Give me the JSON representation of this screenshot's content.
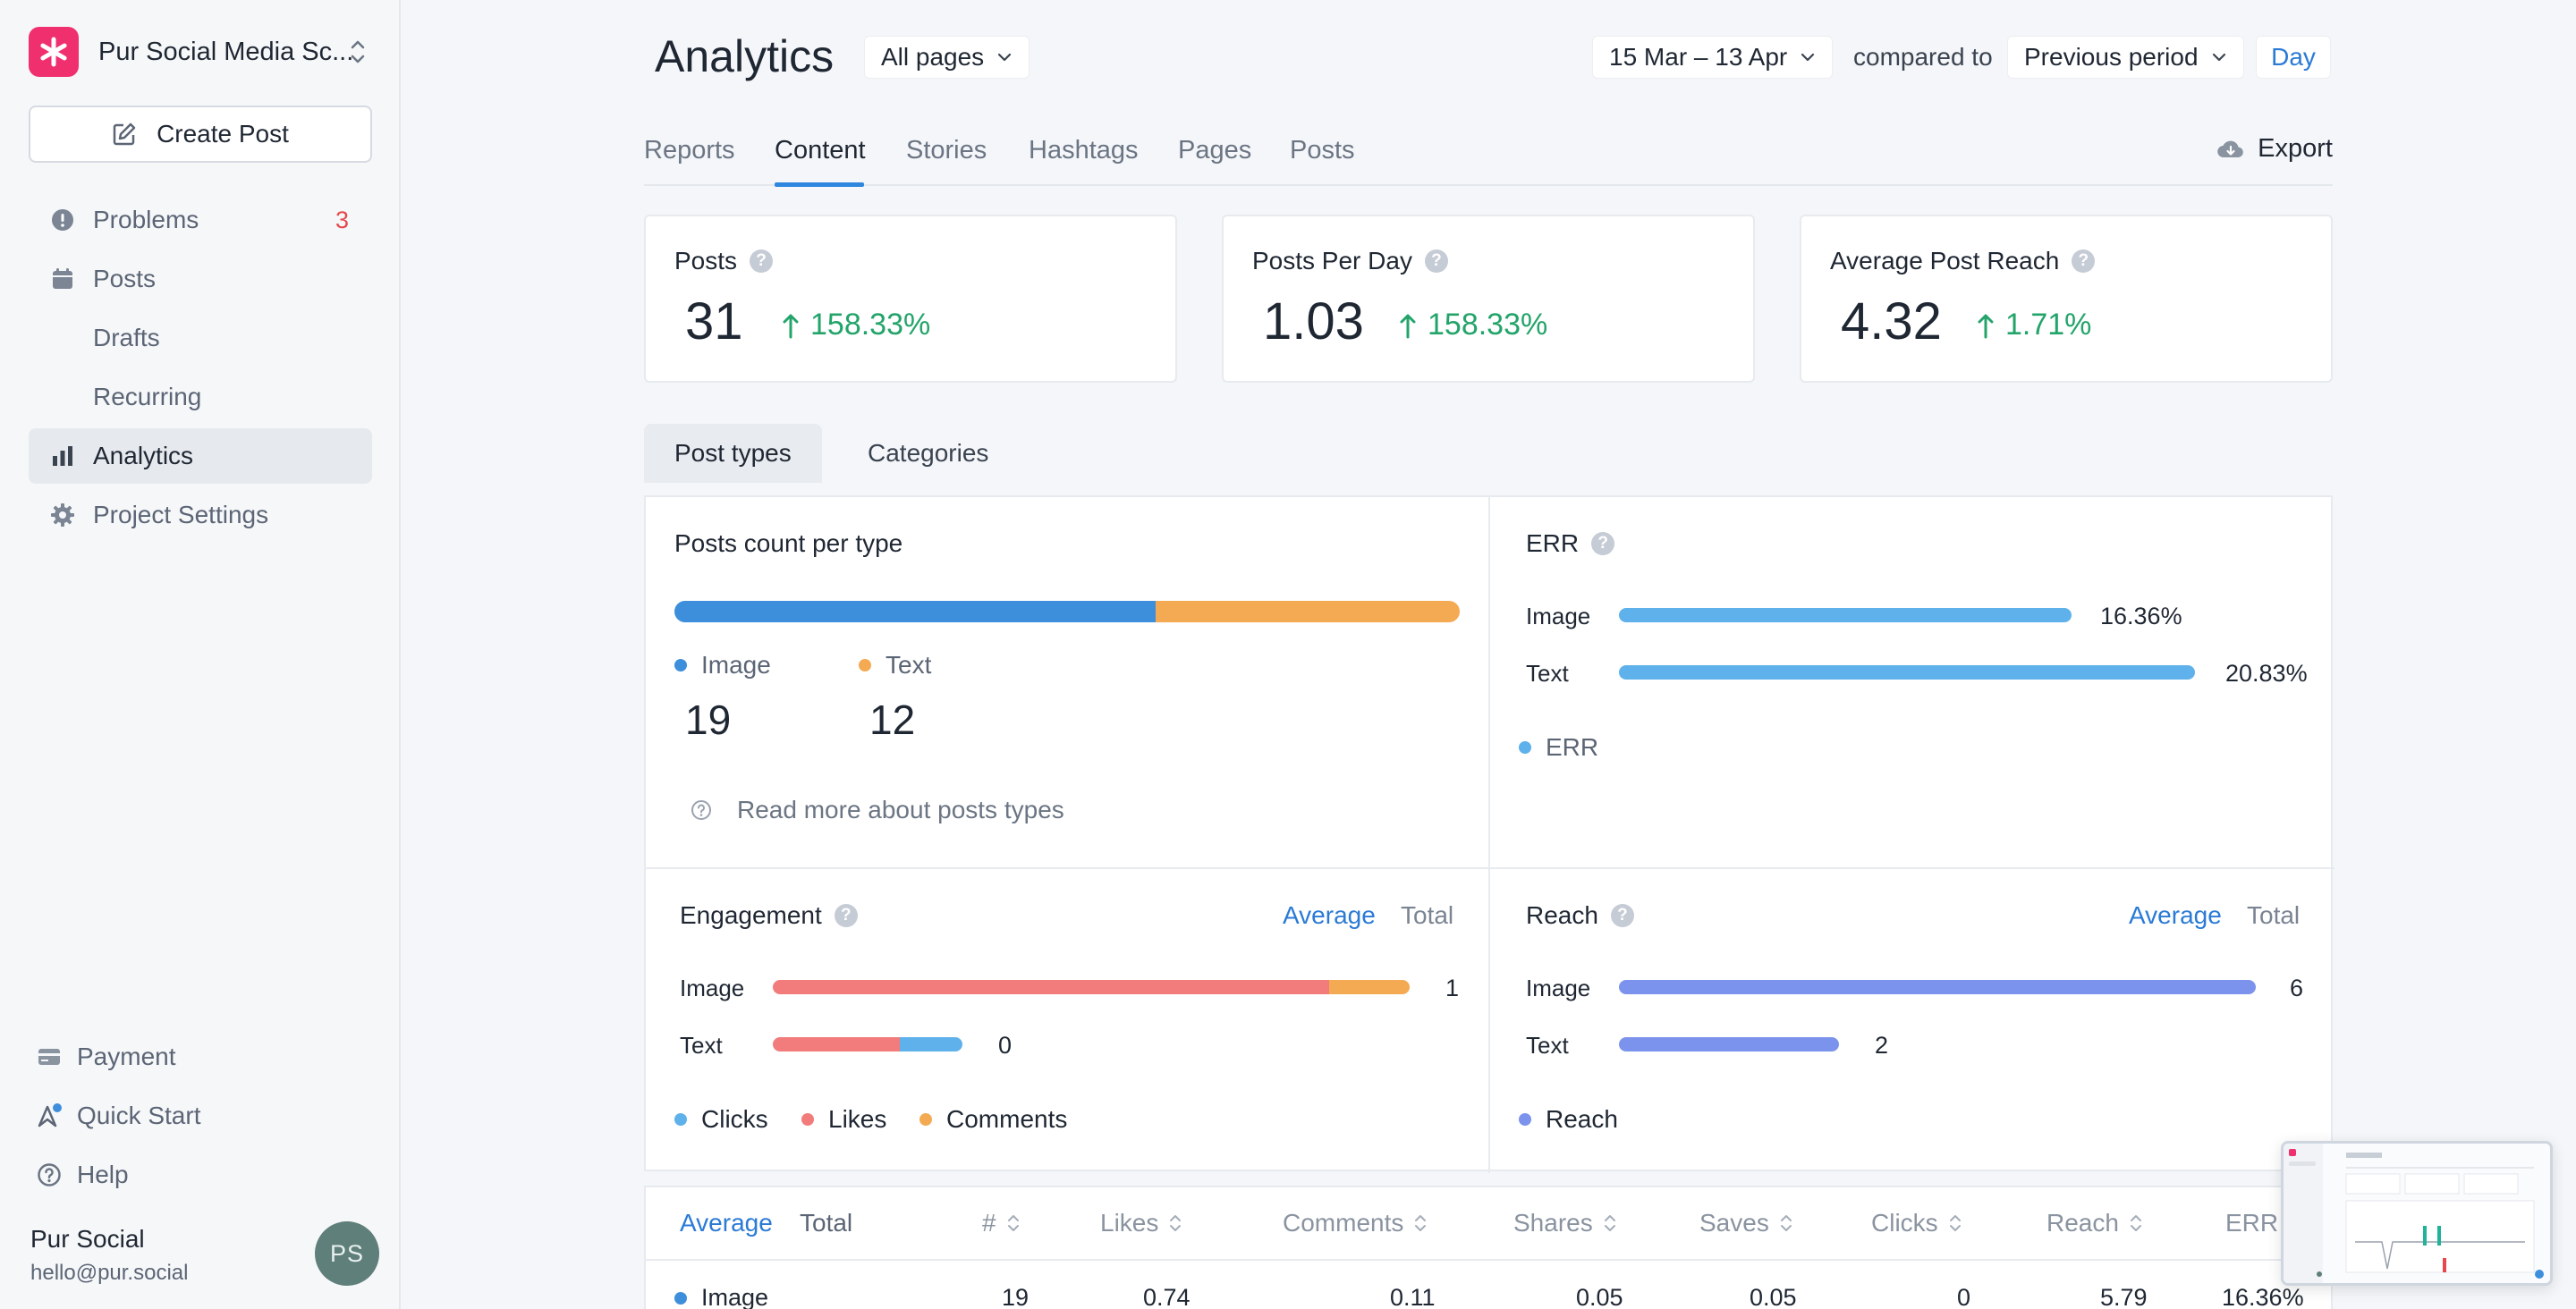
{
  "project": {
    "name": "Pur Social Media Sc..."
  },
  "sidebar": {
    "create_label": "Create Post",
    "items": [
      {
        "label": "Problems",
        "badge": "3"
      },
      {
        "label": "Posts"
      },
      {
        "label": "Drafts"
      },
      {
        "label": "Recurring"
      },
      {
        "label": "Analytics"
      },
      {
        "label": "Project Settings"
      }
    ],
    "bottom": [
      {
        "label": "Payment"
      },
      {
        "label": "Quick Start"
      },
      {
        "label": "Help"
      }
    ],
    "user": {
      "name": "Pur Social",
      "email": "hello@pur.social",
      "initials": "PS"
    }
  },
  "header": {
    "title": "Analytics",
    "pages_filter": "All pages",
    "date_range": "15 Mar – 13 Apr",
    "compared_label": "compared to",
    "comparison": "Previous period",
    "granularity": "Day",
    "export_label": "Export"
  },
  "tabs": [
    "Reports",
    "Content",
    "Stories",
    "Hashtags",
    "Pages",
    "Posts"
  ],
  "kpis": [
    {
      "label": "Posts",
      "value": "31",
      "delta": "158.33%"
    },
    {
      "label": "Posts Per Day",
      "value": "1.03",
      "delta": "158.33%"
    },
    {
      "label": "Average Post Reach",
      "value": "4.32",
      "delta": "1.71%"
    }
  ],
  "subtabs": [
    "Post types",
    "Categories"
  ],
  "posts_count": {
    "title": "Posts count per type",
    "types": [
      {
        "label": "Image",
        "value": "19",
        "count": 19,
        "color": "#3d8fdc"
      },
      {
        "label": "Text",
        "value": "12",
        "count": 12,
        "color": "#f4aa52"
      }
    ],
    "read_more": "Read more about posts types"
  },
  "err": {
    "title": "ERR",
    "rows": [
      {
        "label": "Image",
        "value": "16.36%",
        "pct": 16.36
      },
      {
        "label": "Text",
        "value": "20.83%",
        "pct": 20.83
      }
    ],
    "legend": "ERR",
    "color": "#5eb1ea"
  },
  "engagement": {
    "title": "Engagement",
    "toggle_average": "Average",
    "toggle_total": "Total",
    "rows": [
      {
        "label": "Image",
        "value": "1"
      },
      {
        "label": "Text",
        "value": "0"
      }
    ],
    "legend": [
      {
        "label": "Clicks",
        "color": "#5eb1ea"
      },
      {
        "label": "Likes",
        "color": "#f27c7c"
      },
      {
        "label": "Comments",
        "color": "#f4aa52"
      }
    ]
  },
  "reach": {
    "title": "Reach",
    "toggle_average": "Average",
    "toggle_total": "Total",
    "rows": [
      {
        "label": "Image",
        "value": "6"
      },
      {
        "label": "Text",
        "value": "2"
      }
    ],
    "legend": "Reach",
    "color": "#7b93ec"
  },
  "table": {
    "toggle_average": "Average",
    "toggle_total": "Total",
    "columns": [
      "#",
      "Likes",
      "Comments",
      "Shares",
      "Saves",
      "Clicks",
      "Reach",
      "ERR"
    ],
    "row": {
      "label": "Image",
      "values": [
        "19",
        "0.74",
        "0.11",
        "0.05",
        "0.05",
        "0",
        "5.79",
        "16.36%"
      ]
    }
  }
}
